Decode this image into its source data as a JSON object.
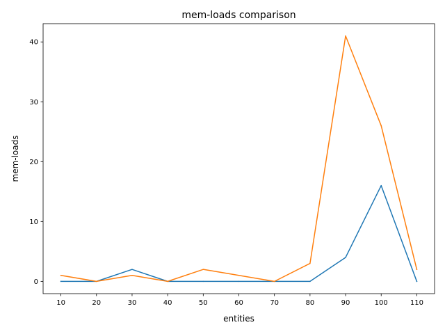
{
  "chart_data": {
    "type": "line",
    "title": "mem-loads comparison",
    "xlabel": "entities",
    "ylabel": "mem-loads",
    "categories": [
      "10",
      "20",
      "30",
      "40",
      "50",
      "60",
      "70",
      "80",
      "90",
      "100",
      "110"
    ],
    "x": [
      10,
      20,
      30,
      40,
      50,
      60,
      70,
      80,
      90,
      100,
      110
    ],
    "xlim": [
      5,
      115
    ],
    "ylim": [
      -2.05,
      43.05
    ],
    "yticks": [
      0,
      10,
      20,
      30,
      40
    ],
    "grid": false,
    "legend": "none",
    "series": [
      {
        "color": "#1f77b4",
        "values": [
          0,
          0,
          2,
          0,
          0,
          0,
          0,
          0,
          4,
          16,
          0
        ]
      },
      {
        "color": "#ff7f0e",
        "values": [
          1,
          0,
          1,
          0,
          2,
          1,
          0,
          3,
          41,
          26,
          2
        ]
      }
    ]
  }
}
